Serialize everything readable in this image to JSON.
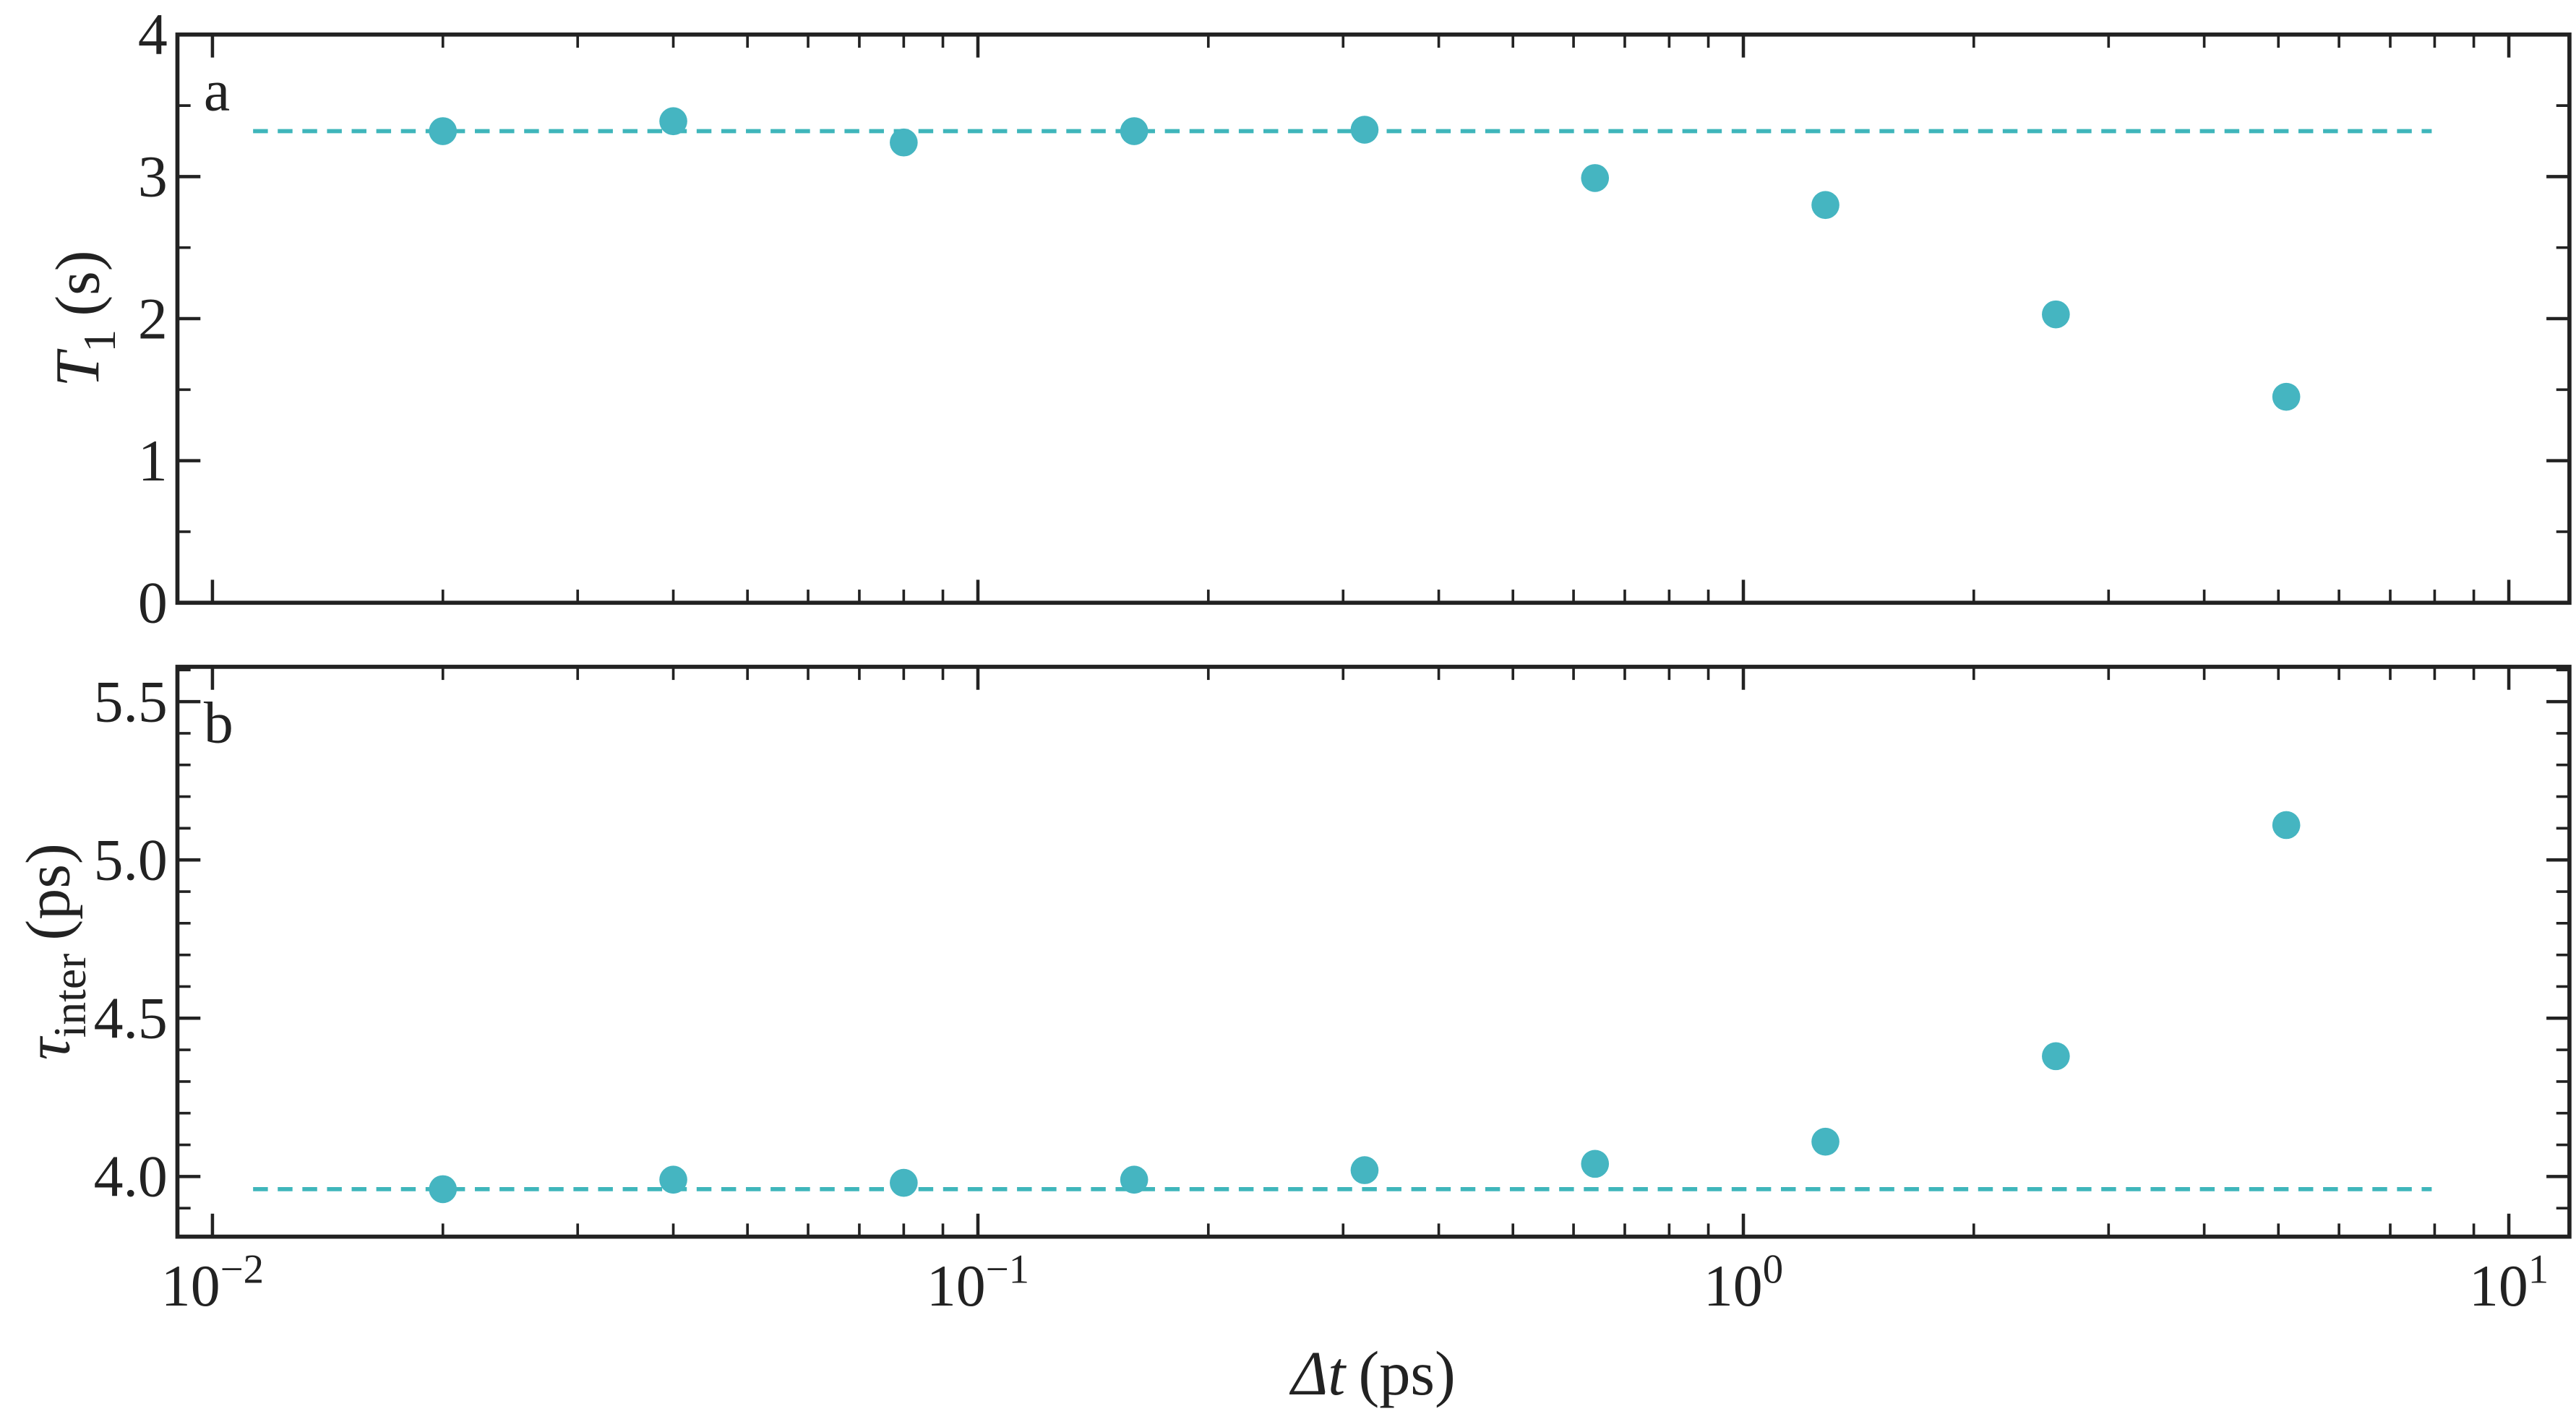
{
  "chart_data": [
    {
      "type": "scatter",
      "panel_label": "a",
      "ylabel": {
        "symbol": "T",
        "subscript": "1",
        "unit": "(s)"
      },
      "x": [
        0.02,
        0.04,
        0.08,
        0.16,
        0.32,
        0.64,
        1.28,
        2.56,
        5.12
      ],
      "series": [
        {
          "color": "#45b5c1",
          "values": [
            3.32,
            3.39,
            3.24,
            3.32,
            3.33,
            2.99,
            2.8,
            2.03,
            1.45
          ]
        }
      ],
      "reference_line": {
        "x": [
          0.0113,
          7.93
        ],
        "y": 3.32,
        "color": "#3fb6bb"
      },
      "xscale": "log",
      "xlim": [
        0.009,
        12
      ],
      "xticks": [
        0.01,
        0.1,
        1,
        10
      ],
      "xminorticks": [
        0.02,
        0.03,
        0.04,
        0.05,
        0.06,
        0.07,
        0.08,
        0.09,
        0.2,
        0.3,
        0.4,
        0.5,
        0.6,
        0.7,
        0.8,
        0.9,
        2,
        3,
        4,
        5,
        6,
        7,
        8,
        9
      ],
      "ylim": [
        0,
        4
      ],
      "yticks": [
        0,
        1,
        2,
        3,
        4
      ],
      "yminorticks": [
        0.5,
        1.5,
        2.5,
        3.5
      ]
    },
    {
      "type": "scatter",
      "panel_label": "b",
      "ylabel": {
        "symbol": "τ",
        "subscript": "inter",
        "unit": "(ps)"
      },
      "xlabel": {
        "symbol": "Δt",
        "unit": "(ps)"
      },
      "x": [
        0.02,
        0.04,
        0.08,
        0.16,
        0.32,
        0.64,
        1.28,
        2.56,
        5.12
      ],
      "series": [
        {
          "color": "#45b5c1",
          "values": [
            3.96,
            3.99,
            3.98,
            3.99,
            4.02,
            4.04,
            4.11,
            4.38,
            5.11
          ]
        }
      ],
      "reference_line": {
        "x": [
          0.0113,
          7.93
        ],
        "y": 3.96,
        "color": "#3fb6bb"
      },
      "xscale": "log",
      "xlim": [
        0.009,
        12
      ],
      "xticks": [
        {
          "value": 0.01,
          "label": "10",
          "exponent": "−2"
        },
        {
          "value": 0.1,
          "label": "10",
          "exponent": "−1"
        },
        {
          "value": 1,
          "label": "10",
          "exponent": "0"
        },
        {
          "value": 10,
          "label": "10",
          "exponent": "1"
        }
      ],
      "xminorticks": [
        0.02,
        0.03,
        0.04,
        0.05,
        0.06,
        0.07,
        0.08,
        0.09,
        0.2,
        0.3,
        0.4,
        0.5,
        0.6,
        0.7,
        0.8,
        0.9,
        2,
        3,
        4,
        5,
        6,
        7,
        8,
        9
      ],
      "ylim": [
        3.81,
        5.61
      ],
      "yticks": [
        {
          "value": 4,
          "label": "4.0"
        },
        4.5,
        {
          "value": 5,
          "label": "5.0"
        },
        5.5
      ],
      "yminorticks": [
        3.9,
        4.1,
        4.2,
        4.3,
        4.4,
        4.6,
        4.7,
        4.8,
        4.9,
        5.1,
        5.2,
        5.3,
        5.4,
        5.6
      ]
    }
  ]
}
